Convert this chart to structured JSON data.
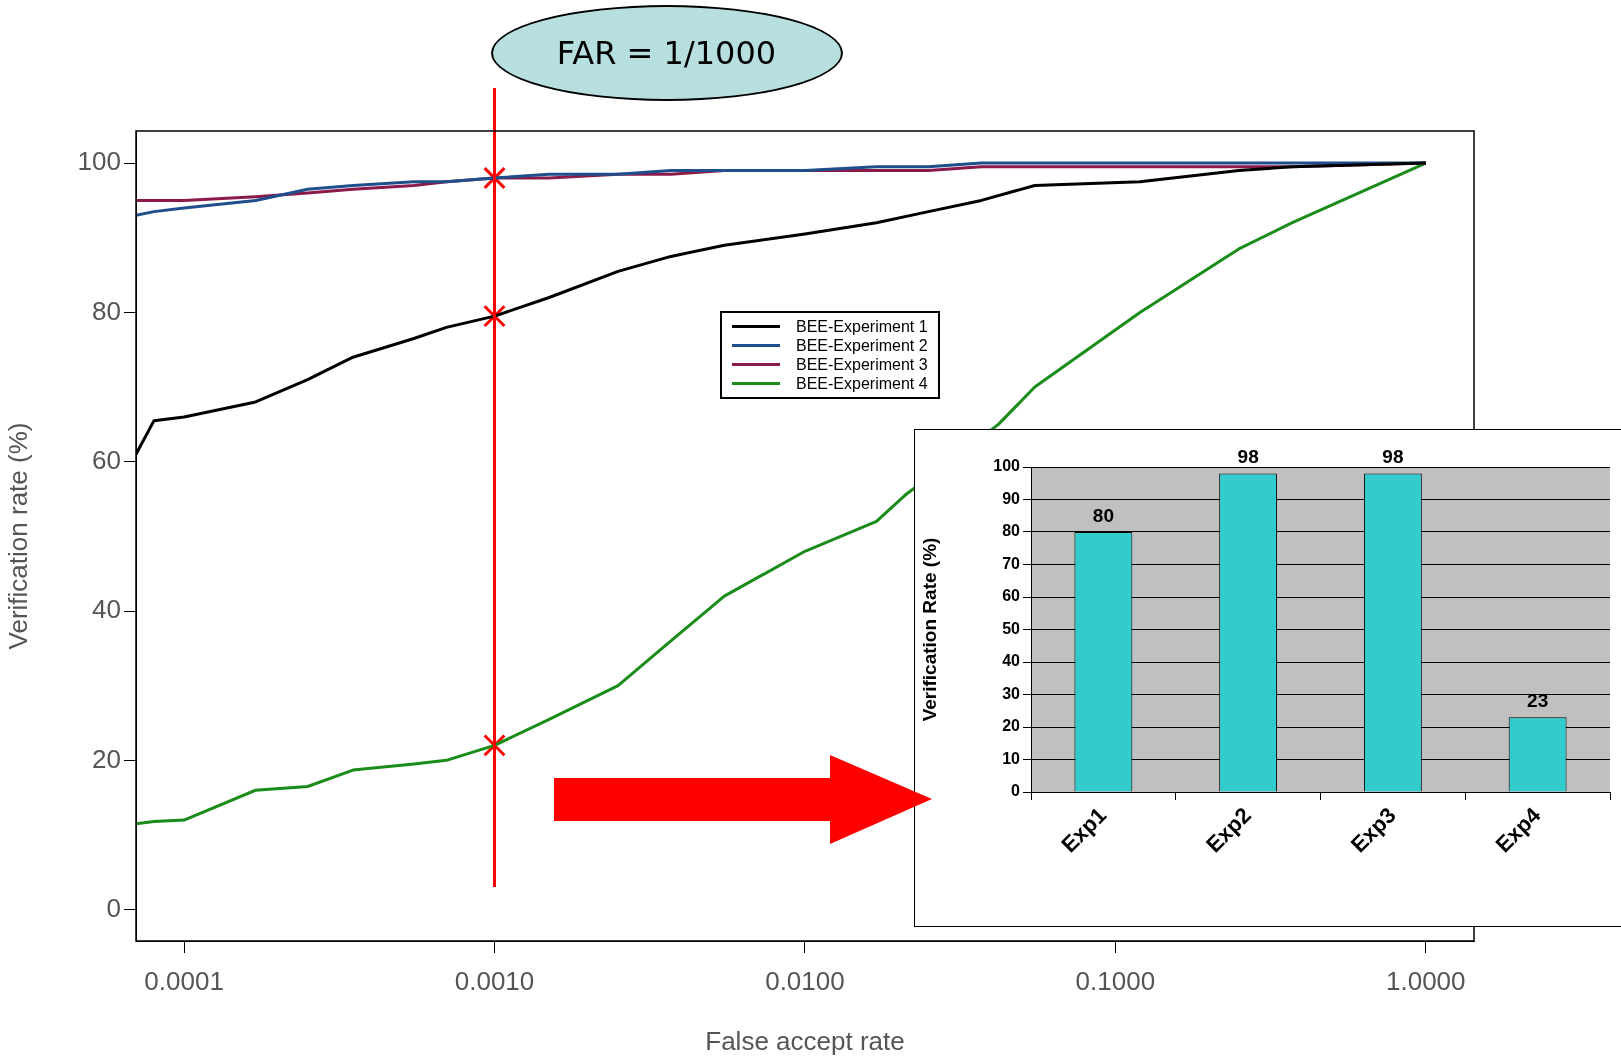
{
  "chart_data": [
    {
      "type": "line",
      "xlabel": "False accept rate",
      "ylabel": "Verification rate (%)",
      "log": "x",
      "grid": false,
      "legend": "top",
      "marker": "none",
      "xlim": [
        7e-05,
        1.43
      ],
      "xticks": [
        {
          "value": 0.0001,
          "label": "0.0001"
        },
        {
          "value": 0.001,
          "label": "0.0010"
        },
        {
          "value": 0.01,
          "label": "0.0100"
        },
        {
          "value": 0.1,
          "label": "0.1000"
        },
        {
          "value": 1,
          "label": "1.0000"
        }
      ],
      "ylim": [
        -4.2,
        104.3
      ],
      "yticks": [
        0,
        20,
        40,
        60,
        80,
        100
      ],
      "x": [
        7e-05,
        8e-05,
        0.0001,
        0.00017,
        0.00025,
        0.00035,
        0.00055,
        0.0007,
        0.001,
        0.0015,
        0.0025,
        0.0037,
        0.0055,
        0.01,
        0.017,
        0.025,
        0.037,
        0.055,
        0.12,
        0.25,
        0.37,
        1
      ],
      "series": [
        {
          "name": "BEE-Experiment 1",
          "color": "#000000",
          "values": [
            61,
            65.5,
            66,
            68,
            71,
            74,
            76.5,
            78,
            79.5,
            82,
            85.5,
            87.5,
            89,
            90.5,
            92,
            93.5,
            95,
            97,
            97.5,
            99,
            99.5,
            100
          ]
        },
        {
          "name": "BEE-Experiment 2",
          "color": "#1f4e8c",
          "values": [
            93,
            93.5,
            94,
            95,
            96.5,
            97,
            97.5,
            97.5,
            98,
            98.5,
            98.5,
            99,
            99,
            99,
            99.5,
            99.5,
            100,
            100,
            100,
            100,
            100,
            100
          ]
        },
        {
          "name": "BEE-Experiment 3",
          "color": "#8b1a4a",
          "values": [
            95,
            95,
            95,
            95.5,
            96,
            96.5,
            97,
            97.5,
            98,
            98,
            98.5,
            98.5,
            99,
            99,
            99,
            99,
            99.5,
            99.5,
            99.5,
            99.5,
            99.5,
            100
          ]
        },
        {
          "name": "BEE-Experiment 4",
          "color": "#1a8c1a",
          "x": [
            7e-05,
            8e-05,
            0.0001,
            0.00017,
            0.00025,
            0.00035,
            0.00055,
            0.0007,
            0.001,
            0.0015,
            0.0025,
            0.0037,
            0.0055,
            0.01,
            0.017,
            0.021,
            0.042,
            0.055,
            0.12,
            0.25,
            0.37,
            1
          ],
          "values": [
            11.5,
            11.8,
            12,
            16,
            16.5,
            18.7,
            19.5,
            20,
            22,
            25.5,
            30,
            36,
            42,
            48,
            52,
            55.5,
            65,
            70,
            80,
            88.5,
            92,
            100
          ]
        },
        {
          "type": "scatter",
          "color": "#ff0000",
          "marker": "cross",
          "x": [
            0.001,
            0.001,
            0.001
          ],
          "values": [
            98,
            79.5,
            22
          ]
        }
      ],
      "ref_lines": [
        {
          "axis": "x",
          "value": 0.001,
          "label": "FAR = 1/1000",
          "color": "#ff0000"
        }
      ]
    },
    {
      "type": "bar",
      "ylabel": "Verification Rate (%)",
      "categories": [
        "Exp1",
        "Exp2",
        "Exp3",
        "Exp4"
      ],
      "values": [
        80,
        98,
        98,
        23
      ],
      "color": "#33cccc",
      "ylim": [
        0,
        100
      ],
      "yticks": [
        0,
        10,
        20,
        30,
        40,
        50,
        60,
        70,
        80,
        90,
        100
      ],
      "grid": "y",
      "data_labels": true
    }
  ]
}
